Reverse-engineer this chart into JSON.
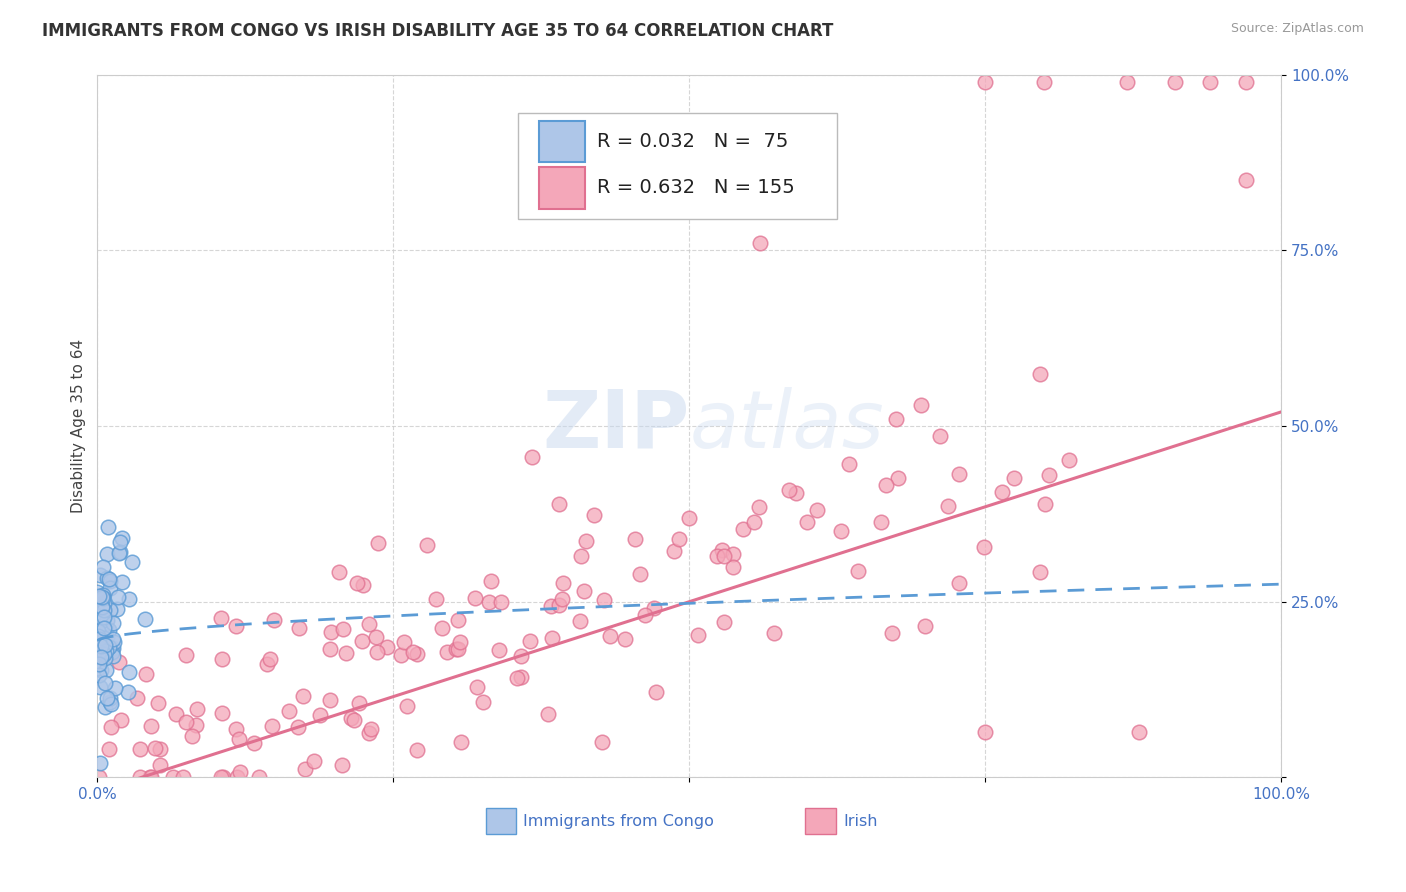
{
  "title": "IMMIGRANTS FROM CONGO VS IRISH DISABILITY AGE 35 TO 64 CORRELATION CHART",
  "source": "Source: ZipAtlas.com",
  "ylabel": "Disability Age 35 to 64",
  "xlim": [
    0.0,
    1.0
  ],
  "ylim": [
    0.0,
    1.0
  ],
  "xticks": [
    0.0,
    0.25,
    0.5,
    0.75,
    1.0
  ],
  "xticklabels": [
    "0.0%",
    "",
    "",
    "",
    "100.0%"
  ],
  "yticks": [
    0.0,
    0.25,
    0.5,
    0.75,
    1.0
  ],
  "yticklabels": [
    "",
    "25.0%",
    "50.0%",
    "75.0%",
    "100.0%"
  ],
  "congo_R": 0.032,
  "congo_N": 75,
  "irish_R": 0.632,
  "irish_N": 155,
  "congo_color": "#aec6e8",
  "congo_edge": "#5b9bd5",
  "irish_color": "#f4a7b9",
  "irish_edge": "#e07090",
  "trend_congo_color": "#5b9bd5",
  "trend_irish_color": "#e07090",
  "background_color": "#ffffff",
  "grid_color": "#cccccc",
  "watermark_color": "#c8d8ee",
  "tick_color": "#4472c4",
  "title_fontsize": 12,
  "label_fontsize": 11,
  "tick_fontsize": 11,
  "legend_fontsize": 14,
  "irish_trend_start_y": -0.02,
  "irish_trend_end_y": 0.52,
  "congo_trend_start_y": 0.195,
  "congo_trend_end_y": 0.275
}
